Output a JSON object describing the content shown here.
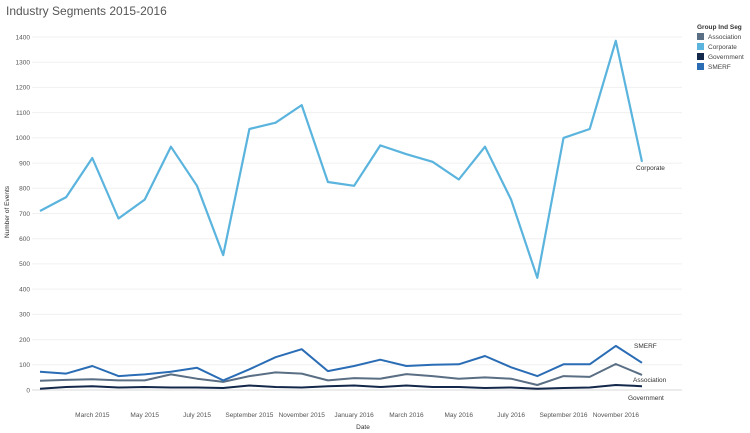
{
  "chart_data": {
    "type": "line",
    "title": "Industry Segments 2015-2016",
    "xlabel": "Date",
    "ylabel": "Number of Events",
    "ylim": [
      0,
      1400
    ],
    "y_ticks": [
      0,
      100,
      200,
      300,
      400,
      500,
      600,
      700,
      800,
      900,
      1000,
      1100,
      1200,
      1300,
      1400
    ],
    "x": [
      "2015-01",
      "2015-02",
      "2015-03",
      "2015-04",
      "2015-05",
      "2015-06",
      "2015-07",
      "2015-08",
      "2015-09",
      "2015-10",
      "2015-11",
      "2015-12",
      "2016-01",
      "2016-02",
      "2016-03",
      "2016-04",
      "2016-05",
      "2016-06",
      "2016-07",
      "2016-08",
      "2016-09",
      "2016-10",
      "2016-11",
      "2016-12"
    ],
    "x_tick_labels": [
      {
        "at": "2015-03",
        "label": "March 2015"
      },
      {
        "at": "2015-05",
        "label": "May 2015"
      },
      {
        "at": "2015-07",
        "label": "July 2015"
      },
      {
        "at": "2015-09",
        "label": "September 2015"
      },
      {
        "at": "2015-11",
        "label": "November 2015"
      },
      {
        "at": "2016-01",
        "label": "January 2016"
      },
      {
        "at": "2016-03",
        "label": "March 2016"
      },
      {
        "at": "2016-05",
        "label": "May 2016"
      },
      {
        "at": "2016-07",
        "label": "July 2016"
      },
      {
        "at": "2016-09",
        "label": "September 2016"
      },
      {
        "at": "2016-11",
        "label": "November 2016"
      }
    ],
    "grid": "horizontal",
    "legend": {
      "title": "Group Ind Seg",
      "position": "top-right",
      "items": [
        "Association",
        "Corporate",
        "Government",
        "SMERF"
      ]
    },
    "series": [
      {
        "name": "Association",
        "color": "#5a6e84",
        "end_label": "Association",
        "values": [
          37,
          40,
          43,
          38,
          38,
          62,
          45,
          32,
          55,
          70,
          65,
          38,
          47,
          45,
          63,
          55,
          45,
          50,
          45,
          20,
          55,
          52,
          103,
          60
        ]
      },
      {
        "name": "Corporate",
        "color": "#5ab4dd",
        "end_label": "Corporate",
        "values": [
          710,
          765,
          920,
          680,
          755,
          965,
          810,
          535,
          1035,
          1060,
          1130,
          825,
          810,
          970,
          935,
          905,
          835,
          965,
          755,
          445,
          1000,
          1035,
          1385,
          905
        ]
      },
      {
        "name": "Government",
        "color": "#14284b",
        "end_label": "Government",
        "values": [
          5,
          12,
          15,
          10,
          12,
          10,
          10,
          8,
          18,
          12,
          10,
          15,
          18,
          12,
          18,
          12,
          12,
          8,
          10,
          5,
          8,
          10,
          20,
          15
        ]
      },
      {
        "name": "SMERF",
        "color": "#2a6db5",
        "end_label": "SMERF",
        "values": [
          72,
          65,
          95,
          55,
          62,
          72,
          88,
          38,
          82,
          130,
          162,
          75,
          95,
          120,
          95,
          100,
          102,
          135,
          90,
          55,
          102,
          102,
          175,
          108
        ]
      }
    ]
  }
}
